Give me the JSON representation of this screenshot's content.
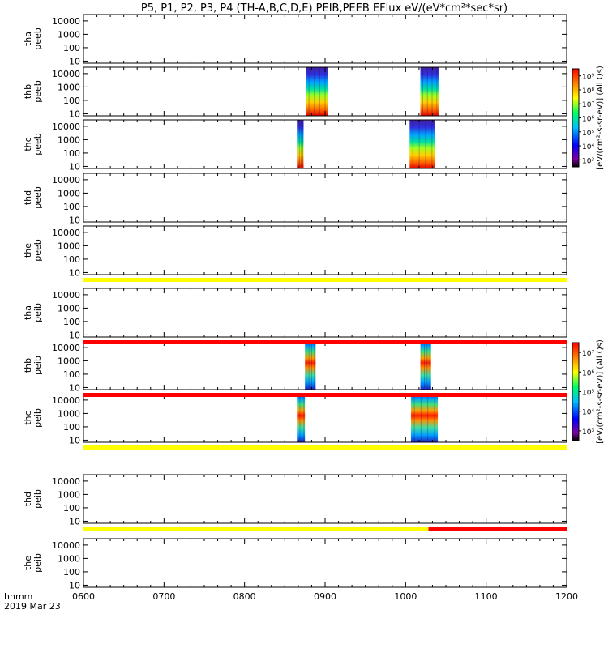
{
  "chart_data": {
    "type": "heatmap",
    "title": "P5, P1, P2, P3, P4 (TH-A,B,C,D,E) PEIB,PEEB EFlux eV/(eV*cm²*sec*sr)",
    "x_ticks": [
      "0600",
      "0700",
      "0800",
      "0900",
      "1000",
      "1100",
      "1200"
    ],
    "x_range": [
      "0600",
      "1200"
    ],
    "x_label": [
      "hhmm",
      "2019 Mar 23"
    ],
    "y_scale": "log",
    "y_ticks": [
      "10",
      "100",
      "1000",
      "10000"
    ],
    "y_range": [
      7,
      30000
    ],
    "panels": [
      {
        "label": [
          "tha",
          "peeb"
        ],
        "bursts": []
      },
      {
        "label": [
          "thb",
          "peeb"
        ],
        "bursts": [
          [
            "0846",
            "0902"
          ],
          [
            "1011",
            "1025"
          ]
        ]
      },
      {
        "label": [
          "thc",
          "peeb"
        ],
        "bursts": [
          [
            "0839",
            "0844"
          ],
          [
            "1003",
            "1022"
          ]
        ]
      },
      {
        "label": [
          "thd",
          "peeb"
        ],
        "bursts": []
      },
      {
        "label": [
          "the",
          "peeb"
        ],
        "bursts": []
      },
      {
        "label": [
          "tha",
          "peib"
        ],
        "bursts": []
      },
      {
        "label": [
          "thb",
          "peib"
        ],
        "bursts": [
          [
            "0845",
            "0853"
          ],
          [
            "1011",
            "1019"
          ]
        ]
      },
      {
        "label": [
          "thc",
          "peib"
        ],
        "bursts": [
          [
            "0839",
            "0845"
          ],
          [
            "1004",
            "1024"
          ]
        ]
      },
      {
        "label": [
          "thd",
          "peib"
        ],
        "bursts": []
      },
      {
        "label": [
          "the",
          "peib"
        ],
        "bursts": []
      }
    ],
    "status_bars": [
      {
        "after_panel": 4,
        "segments": [
          {
            "from": "0600",
            "to": "1200",
            "color": "#ffff00"
          }
        ]
      },
      {
        "after_panel": 5,
        "segments": [
          {
            "from": "0600",
            "to": "1200",
            "color": "#ff0000"
          }
        ]
      },
      {
        "after_panel": 6,
        "segments": [
          {
            "from": "0600",
            "to": "1200",
            "color": "#ff0000"
          }
        ]
      },
      {
        "after_panel": 7,
        "segments": [
          {
            "from": "0600",
            "to": "1200",
            "color": "#ffff00"
          }
        ]
      },
      {
        "after_panel": 8,
        "segments": [
          {
            "from": "0600",
            "to": "1017",
            "color": "#ffff00"
          },
          {
            "from": "1017",
            "to": "1200",
            "color": "#ff0000"
          }
        ]
      }
    ],
    "colorbars": [
      {
        "tick_labels": [
          "10³",
          "10⁴",
          "10⁵",
          "10⁶",
          "10⁷",
          "10⁸",
          "10⁹"
        ],
        "label": "[eV/(cm²-s-sr-eV)] (All Qs)",
        "span_panels": [
          1,
          2
        ]
      },
      {
        "tick_labels": [
          "10³",
          "10⁴",
          "10⁵",
          "10⁶",
          "10⁷"
        ],
        "label": "[eV/(cm²-s-sr-eV)] (All Qs)",
        "span_panels": [
          6,
          7
        ]
      }
    ]
  }
}
